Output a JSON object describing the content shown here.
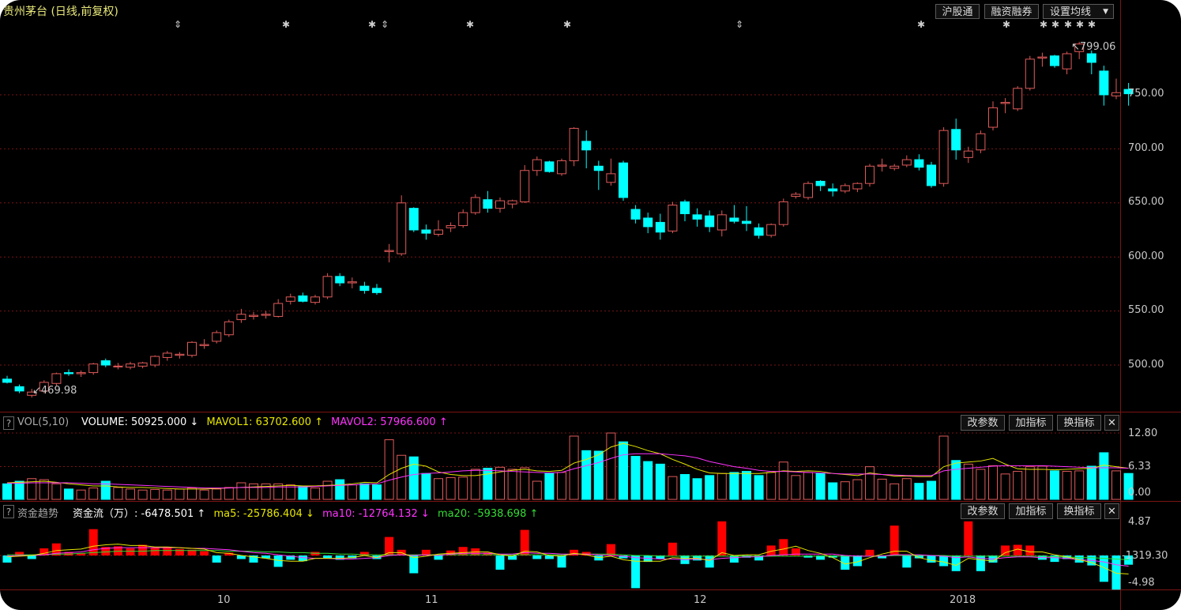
{
  "title": "贵州茅台 (日线,前复权)",
  "top_buttons": [
    "沪股通",
    "融资融券",
    "设置均线"
  ],
  "top_dropdown_icon": "caret-down-icon",
  "chart_data": [
    {
      "type": "candlestick",
      "title": "贵州茅台 (日线,前复权)",
      "yticks": [
        "750.00",
        "700.00",
        "650.00",
        "600.00",
        "550.00",
        "500.00"
      ],
      "xticks": [
        "10",
        "11",
        "12",
        "2018"
      ],
      "ylim": [
        455,
        808
      ],
      "high_label": "799.06",
      "low_label": "469.98",
      "grid": true,
      "ohlc": [
        [
          487.0,
          490.0,
          483.0,
          484.0
        ],
        [
          480.0,
          482.0,
          474.0,
          476.0
        ],
        [
          472.0,
          478.0,
          469.98,
          475.0
        ],
        [
          476.0,
          486.0,
          474.0,
          484.0
        ],
        [
          483.0,
          493.0,
          481.0,
          492.0
        ],
        [
          493.0,
          496.0,
          490.0,
          492.0
        ],
        [
          492.0,
          495.0,
          489.0,
          493.0
        ],
        [
          493.0,
          502.0,
          491.0,
          501.0
        ],
        [
          504.0,
          506.0,
          498.0,
          500.0
        ],
        [
          499.0,
          502.0,
          496.0,
          499.0
        ],
        [
          498.0,
          503.0,
          496.0,
          501.0
        ],
        [
          499.0,
          503.0,
          497.0,
          502.0
        ],
        [
          500.0,
          509.0,
          498.0,
          508.0
        ],
        [
          507.0,
          513.0,
          504.0,
          511.0
        ],
        [
          509.0,
          512.0,
          506.0,
          510.0
        ],
        [
          509.0,
          522.0,
          507.0,
          521.0
        ],
        [
          518.0,
          524.0,
          515.0,
          519.0
        ],
        [
          522.0,
          532.0,
          520.0,
          530.0
        ],
        [
          528.0,
          542.0,
          526.0,
          540.0
        ],
        [
          542.0,
          552.0,
          539.0,
          547.0
        ],
        [
          545.0,
          549.0,
          542.0,
          546.0
        ],
        [
          546.0,
          550.0,
          543.0,
          547.0
        ],
        [
          545.0,
          561.0,
          544.0,
          557.0
        ],
        [
          559.0,
          566.0,
          556.0,
          563.0
        ],
        [
          564.0,
          567.0,
          558.0,
          559.0
        ],
        [
          558.0,
          565.0,
          556.0,
          563.0
        ],
        [
          563.0,
          585.0,
          561.0,
          582.0
        ],
        [
          582.0,
          585.0,
          573.0,
          576.0
        ],
        [
          576.0,
          581.0,
          571.0,
          577.0
        ],
        [
          573.0,
          577.0,
          566.0,
          569.0
        ],
        [
          571.0,
          575.0,
          565.0,
          567.0
        ],
        [
          605.0,
          612.0,
          595.0,
          606.0
        ],
        [
          603.0,
          657.0,
          601.0,
          650.0
        ],
        [
          645.0,
          646.0,
          623.0,
          625.0
        ],
        [
          625.0,
          630.0,
          616.0,
          622.0
        ],
        [
          621.0,
          634.0,
          619.0,
          625.0
        ],
        [
          627.0,
          632.0,
          623.0,
          629.0
        ],
        [
          629.0,
          644.0,
          627.0,
          641.0
        ],
        [
          641.0,
          658.0,
          639.0,
          655.0
        ],
        [
          653.0,
          661.0,
          641.0,
          645.0
        ],
        [
          645.0,
          655.0,
          641.0,
          652.0
        ],
        [
          649.0,
          653.0,
          645.0,
          652.0
        ],
        [
          651.0,
          685.0,
          650.0,
          680.0
        ],
        [
          680.0,
          693.0,
          675.0,
          690.0
        ],
        [
          688.0,
          689.0,
          678.0,
          679.0
        ],
        [
          677.0,
          691.0,
          675.0,
          689.0
        ],
        [
          689.0,
          720.0,
          684.0,
          719.0
        ],
        [
          707.0,
          717.0,
          682.0,
          699.0
        ],
        [
          684.0,
          689.0,
          662.0,
          680.0
        ],
        [
          669.0,
          691.0,
          666.0,
          677.0
        ],
        [
          687.0,
          689.0,
          652.0,
          655.0
        ],
        [
          644.0,
          648.0,
          631.0,
          635.0
        ],
        [
          636.0,
          641.0,
          622.0,
          628.0
        ],
        [
          632.0,
          640.0,
          616.0,
          623.0
        ],
        [
          624.0,
          651.0,
          622.0,
          648.0
        ],
        [
          651.0,
          653.0,
          633.0,
          640.0
        ],
        [
          639.0,
          645.0,
          628.0,
          635.0
        ],
        [
          638.0,
          643.0,
          623.0,
          628.0
        ],
        [
          625.0,
          643.0,
          619.0,
          639.0
        ],
        [
          636.0,
          648.0,
          631.0,
          633.0
        ],
        [
          633.0,
          647.0,
          624.0,
          631.0
        ],
        [
          627.0,
          631.0,
          617.0,
          620.0
        ],
        [
          620.0,
          631.0,
          618.0,
          630.0
        ],
        [
          630.0,
          654.0,
          628.0,
          651.0
        ],
        [
          656.0,
          660.0,
          654.0,
          658.0
        ],
        [
          655.0,
          670.0,
          653.0,
          668.0
        ],
        [
          670.0,
          671.0,
          661.0,
          666.0
        ],
        [
          663.0,
          668.0,
          656.0,
          661.0
        ],
        [
          661.0,
          668.0,
          659.0,
          666.0
        ],
        [
          663.0,
          669.0,
          660.0,
          668.0
        ],
        [
          668.0,
          686.0,
          665.0,
          684.0
        ],
        [
          684.0,
          691.0,
          679.0,
          685.0
        ],
        [
          682.0,
          686.0,
          680.0,
          684.0
        ],
        [
          685.0,
          694.0,
          683.0,
          690.0
        ],
        [
          690.0,
          695.0,
          680.0,
          683.0
        ],
        [
          685.0,
          688.0,
          664.0,
          666.0
        ],
        [
          668.0,
          720.0,
          665.0,
          717.0
        ],
        [
          718.0,
          728.0,
          690.0,
          699.0
        ],
        [
          692.0,
          702.0,
          687.0,
          698.0
        ],
        [
          699.0,
          717.0,
          696.0,
          714.0
        ],
        [
          720.0,
          744.0,
          717.0,
          738.0
        ],
        [
          742.0,
          747.0,
          733.0,
          743.0
        ],
        [
          737.0,
          758.0,
          735.0,
          756.0
        ],
        [
          756.0,
          786.0,
          754.0,
          783.0
        ],
        [
          784.0,
          789.0,
          776.0,
          785.0
        ],
        [
          786.0,
          787.0,
          775.0,
          777.0
        ],
        [
          774.0,
          790.0,
          769.0,
          788.0
        ],
        [
          790.0,
          799.06,
          783.0,
          797.0
        ],
        [
          788.0,
          791.0,
          769.0,
          780.0
        ],
        [
          772.0,
          777.0,
          740.0,
          750.0
        ],
        [
          749.0,
          765.0,
          746.0,
          752.0
        ],
        [
          755.0,
          761.0,
          740.0,
          751.0
        ]
      ]
    },
    {
      "type": "bar",
      "title": "VOL(5,10)",
      "series": [
        {
          "name": "VOLUME",
          "value": "50925.000",
          "arrow": "↓",
          "color": "#ffffff"
        },
        {
          "name": "MAVOL1",
          "value": "63702.600",
          "arrow": "↑",
          "color": "#e6e600"
        },
        {
          "name": "MAVOL2",
          "value": "57966.600",
          "arrow": "↑",
          "color": "#ff33ff"
        }
      ],
      "yticks": [
        "12.80",
        "6.33",
        "0.00"
      ],
      "ylim": [
        0,
        12.8
      ],
      "values": [
        3.0,
        3.5,
        4.0,
        3.8,
        3.0,
        2.0,
        1.8,
        2.2,
        3.5,
        2.3,
        2.0,
        1.8,
        1.9,
        1.8,
        2.0,
        2.2,
        1.8,
        2.0,
        2.3,
        3.2,
        3.0,
        3.0,
        3.0,
        2.8,
        2.5,
        2.2,
        3.5,
        3.8,
        2.8,
        3.0,
        2.8,
        11.5,
        8.5,
        8.2,
        5.0,
        4.0,
        4.2,
        4.3,
        5.8,
        6.0,
        6.2,
        5.8,
        6.1,
        3.5,
        5.0,
        5.2,
        12.2,
        9.4,
        9.3,
        12.8,
        11.1,
        8.3,
        7.3,
        6.8,
        4.4,
        4.8,
        4.0,
        4.6,
        5.0,
        5.2,
        5.4,
        4.6,
        5.2,
        7.2,
        4.6,
        5.2,
        5.0,
        3.2,
        3.4,
        3.8,
        6.3,
        3.9,
        3.0,
        4.0,
        3.1,
        3.5,
        12.2,
        7.5,
        6.8,
        5.8,
        6.5,
        4.9,
        5.4,
        6.3,
        6.4,
        5.5,
        5.4,
        5.5,
        6.4,
        9.0,
        5.5,
        5.0
      ],
      "ma1": [
        3.2,
        3.3,
        3.4,
        3.5,
        3.3,
        3.0,
        2.8,
        2.6,
        2.6,
        2.4,
        2.3,
        2.3,
        2.2,
        2.1,
        2.0,
        2.0,
        2.0,
        2.1,
        2.2,
        2.3,
        2.4,
        2.5,
        2.6,
        2.7,
        2.6,
        2.6,
        2.7,
        2.8,
        3.0,
        3.3,
        3.2,
        4.8,
        6.0,
        6.8,
        6.4,
        5.3,
        4.8,
        4.6,
        4.6,
        4.9,
        5.3,
        5.6,
        5.8,
        5.5,
        5.4,
        5.6,
        7.0,
        7.7,
        8.6,
        10.1,
        10.8,
        10.2,
        9.4,
        8.8,
        7.7,
        6.8,
        5.8,
        5.1,
        5.0,
        5.0,
        5.0,
        5.0,
        5.2,
        5.5,
        5.4,
        5.5,
        5.4,
        5.0,
        4.8,
        4.6,
        5.1,
        4.8,
        4.5,
        4.5,
        4.4,
        4.4,
        6.3,
        7.0,
        7.2,
        7.4,
        7.9,
        6.8,
        5.9,
        5.8,
        5.8,
        5.7,
        5.8,
        5.9,
        6.0,
        6.6,
        6.3,
        6.0
      ],
      "ma2": [
        3.1,
        3.1,
        3.2,
        3.2,
        3.2,
        3.2,
        3.1,
        3.0,
        3.0,
        2.9,
        2.8,
        2.7,
        2.6,
        2.5,
        2.4,
        2.3,
        2.2,
        2.2,
        2.2,
        2.3,
        2.3,
        2.3,
        2.4,
        2.4,
        2.4,
        2.5,
        2.6,
        2.7,
        2.8,
        2.9,
        3.0,
        3.7,
        4.3,
        4.8,
        5.0,
        5.1,
        5.3,
        5.5,
        5.6,
        5.6,
        5.5,
        5.4,
        5.3,
        5.2,
        5.1,
        5.2,
        5.9,
        6.5,
        7.1,
        7.9,
        8.6,
        8.8,
        8.8,
        8.8,
        8.6,
        8.4,
        8.0,
        7.3,
        6.8,
        6.3,
        6.0,
        5.6,
        5.4,
        5.4,
        5.3,
        5.2,
        5.1,
        5.0,
        4.9,
        4.9,
        4.9,
        4.8,
        4.7,
        4.6,
        4.6,
        4.6,
        5.5,
        5.8,
        6.0,
        6.2,
        6.4,
        6.5,
        6.5,
        6.5,
        6.5,
        6.4,
        6.3,
        6.2,
        6.1,
        6.1,
        6.1,
        6.0
      ]
    },
    {
      "type": "bar",
      "title": "资金趋势",
      "series": [
        {
          "name": "资金流（万）",
          "value": "-6478.501",
          "arrow": "↑",
          "color": "#ffffff"
        },
        {
          "name": "ma5",
          "value": "-25786.404",
          "arrow": "↓",
          "color": "#e6e600"
        },
        {
          "name": "ma10",
          "value": "-12764.132",
          "arrow": "↓",
          "color": "#ff33ff"
        },
        {
          "name": "ma20",
          "value": "-5938.698",
          "arrow": "↑",
          "color": "#33dd33"
        }
      ],
      "yticks": [
        "4.87",
        "-1319.30",
        "-4.98"
      ],
      "ylim": [
        -4.98,
        4.87
      ],
      "values": [
        -1.0,
        0.5,
        -0.5,
        1.0,
        1.7,
        0.5,
        0.3,
        3.7,
        1.2,
        1.3,
        1.0,
        1.5,
        1.1,
        1.2,
        0.9,
        0.8,
        0.6,
        -1.0,
        0.4,
        -0.5,
        -1.0,
        -0.4,
        -1.6,
        -0.6,
        -0.8,
        0.5,
        -0.4,
        -0.6,
        -0.4,
        0.5,
        -0.5,
        2.6,
        0.8,
        -2.5,
        0.8,
        -0.6,
        0.7,
        1.2,
        1.0,
        0.4,
        -2.0,
        -0.6,
        3.6,
        -0.5,
        -0.5,
        -1.7,
        0.8,
        0.5,
        -0.7,
        1.6,
        -0.4,
        -4.6,
        -0.9,
        -0.5,
        1.8,
        -1.2,
        -0.7,
        -1.7,
        4.8,
        -1.0,
        -0.3,
        -0.7,
        1.4,
        2.3,
        1.0,
        -0.3,
        -0.6,
        -0.3,
        -2.0,
        -1.5,
        0.8,
        -0.4,
        4.2,
        -1.7,
        -0.4,
        -1.0,
        -1.5,
        -2.2,
        4.8,
        -2.2,
        -1.0,
        1.4,
        1.5,
        1.4,
        -0.6,
        -0.9,
        -0.5,
        -1.0,
        -1.4,
        -3.7,
        -4.8,
        -1.3
      ],
      "ma1": [
        -0.2,
        -0.1,
        0.0,
        0.3,
        0.7,
        0.8,
        0.9,
        1.3,
        1.5,
        1.6,
        1.4,
        1.4,
        1.2,
        1.2,
        1.1,
        1.0,
        0.9,
        0.4,
        0.3,
        0.0,
        -0.2,
        -0.4,
        -0.7,
        -0.8,
        -0.8,
        -0.4,
        -0.4,
        -0.4,
        -0.3,
        0.0,
        -0.3,
        0.4,
        0.4,
        -0.3,
        -0.1,
        0.2,
        0.3,
        0.4,
        0.5,
        0.5,
        0.1,
        -0.1,
        0.6,
        0.5,
        0.0,
        -0.1,
        0.3,
        0.1,
        -0.3,
        -0.1,
        -0.6,
        -0.8,
        -0.8,
        -0.8,
        -0.3,
        -0.4,
        -0.4,
        -0.7,
        0.4,
        0.0,
        0.1,
        0.1,
        0.6,
        0.9,
        1.3,
        0.7,
        0.3,
        -0.3,
        -1.2,
        -0.9,
        -0.3,
        0.2,
        0.6,
        0.6,
        -0.3,
        -0.7,
        -0.9,
        -1.4,
        -0.4,
        -0.6,
        -0.8,
        0.4,
        0.9,
        0.5,
        0.5,
        0.1,
        -0.2,
        -0.6,
        -1.0,
        -1.7,
        -2.5,
        -2.6
      ],
      "ma2": [
        -0.1,
        0.0,
        0.0,
        0.1,
        0.3,
        0.4,
        0.5,
        0.8,
        1.0,
        1.1,
        1.1,
        1.1,
        1.1,
        1.1,
        1.1,
        1.0,
        1.0,
        0.9,
        0.8,
        0.6,
        0.4,
        0.3,
        0.1,
        -0.1,
        -0.3,
        -0.4,
        -0.4,
        -0.5,
        -0.5,
        -0.4,
        -0.3,
        0.0,
        0.1,
        0.0,
        0.1,
        0.0,
        0.2,
        0.3,
        0.3,
        0.3,
        0.2,
        0.2,
        0.4,
        0.3,
        0.3,
        0.2,
        0.2,
        0.2,
        0.1,
        0.0,
        -0.1,
        -0.3,
        -0.4,
        -0.5,
        -0.5,
        -0.6,
        -0.5,
        -0.6,
        -0.4,
        -0.3,
        -0.2,
        -0.2,
        0.0,
        0.1,
        0.2,
        0.2,
        0.2,
        0.2,
        0.0,
        -0.1,
        -0.1,
        -0.1,
        0.1,
        0.1,
        0.1,
        0.0,
        -0.1,
        -0.3,
        -0.2,
        -0.4,
        -0.5,
        -0.3,
        -0.2,
        -0.2,
        -0.3,
        -0.3,
        -0.4,
        -0.6,
        -0.7,
        -0.9,
        -1.3,
        -1.5
      ],
      "ma3": [
        0.1,
        0.1,
        0.1,
        0.1,
        0.2,
        0.2,
        0.3,
        0.4,
        0.5,
        0.6,
        0.6,
        0.6,
        0.7,
        0.7,
        0.7,
        0.7,
        0.7,
        0.7,
        0.6,
        0.6,
        0.6,
        0.5,
        0.5,
        0.4,
        0.4,
        0.3,
        0.3,
        0.2,
        0.2,
        0.1,
        0.1,
        0.1,
        0.1,
        0.1,
        0.1,
        0.1,
        0.1,
        0.1,
        0.1,
        0.1,
        0.1,
        0.1,
        0.1,
        0.1,
        0.1,
        0.1,
        0.2,
        0.2,
        0.2,
        0.2,
        0.1,
        0.0,
        0.0,
        -0.1,
        -0.1,
        -0.1,
        -0.1,
        -0.1,
        -0.1,
        -0.1,
        -0.1,
        -0.1,
        -0.1,
        -0.1,
        -0.1,
        -0.1,
        -0.1,
        -0.1,
        -0.1,
        -0.1,
        -0.1,
        -0.1,
        0.0,
        0.0,
        0.0,
        0.0,
        0.0,
        -0.1,
        -0.1,
        -0.1,
        -0.1,
        -0.1,
        -0.1,
        -0.1,
        -0.1,
        -0.2,
        -0.2,
        -0.3,
        -0.3,
        -0.4,
        -0.5,
        -0.6
      ]
    }
  ],
  "vol_panel": {
    "qmark": "?",
    "indicator": "VOL(5,10)",
    "buttons": [
      "改参数",
      "加指标",
      "换指标"
    ],
    "close_icon": "close-icon"
  },
  "flow_panel": {
    "qmark": "?",
    "indicator": "资金趋势",
    "buttons": [
      "改参数",
      "加指标",
      "换指标"
    ],
    "close_icon": "close-icon"
  },
  "event_markers": {
    "star_icon": "star-icon",
    "arrow_icon": "updown-arrow-icon",
    "stars_glyph": "✱",
    "arrows_glyph": "⇕"
  },
  "colors": {
    "up": "#e05a5a",
    "down": "#00ffff",
    "grid": "#7a1414",
    "bar_up": "#ff0000",
    "bar_down": "#00ffff"
  }
}
